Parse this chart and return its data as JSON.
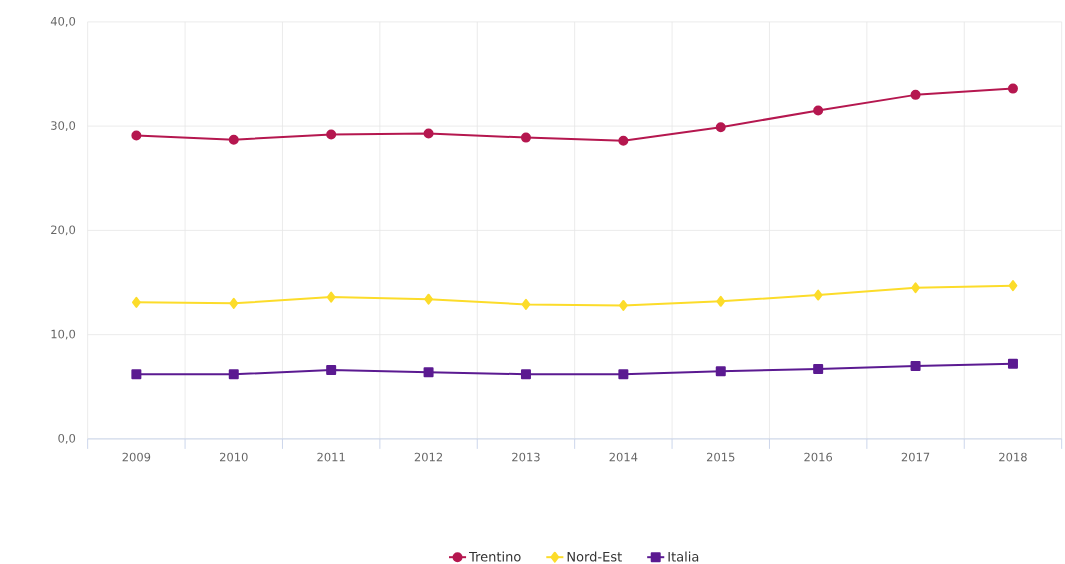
{
  "chart_data": {
    "type": "line",
    "categories": [
      "2009",
      "2010",
      "2011",
      "2012",
      "2013",
      "2014",
      "2015",
      "2016",
      "2017",
      "2018"
    ],
    "series": [
      {
        "name": "Trentino",
        "color": "#b5174f",
        "marker": "circle",
        "values": [
          29.1,
          28.7,
          29.2,
          29.3,
          28.9,
          28.6,
          29.9,
          31.5,
          33.0,
          33.6
        ]
      },
      {
        "name": "Nord-Est",
        "color": "#fcdc2a",
        "marker": "diamond",
        "values": [
          13.1,
          13.0,
          13.6,
          13.4,
          12.9,
          12.8,
          13.2,
          13.8,
          14.5,
          14.7
        ]
      },
      {
        "name": "Italia",
        "color": "#5b1a91",
        "marker": "square",
        "values": [
          6.2,
          6.2,
          6.6,
          6.4,
          6.2,
          6.2,
          6.5,
          6.7,
          7.0,
          7.2
        ]
      }
    ],
    "ylim": [
      0,
      40
    ],
    "yticks": [
      {
        "value": 0,
        "label": "0,0"
      },
      {
        "value": 10,
        "label": "10,0"
      },
      {
        "value": 20,
        "label": "20,0"
      },
      {
        "value": 30,
        "label": "30,0"
      },
      {
        "value": 40,
        "label": "40,0"
      }
    ],
    "grid": true,
    "legend": "bottom",
    "line_style": "solid"
  }
}
